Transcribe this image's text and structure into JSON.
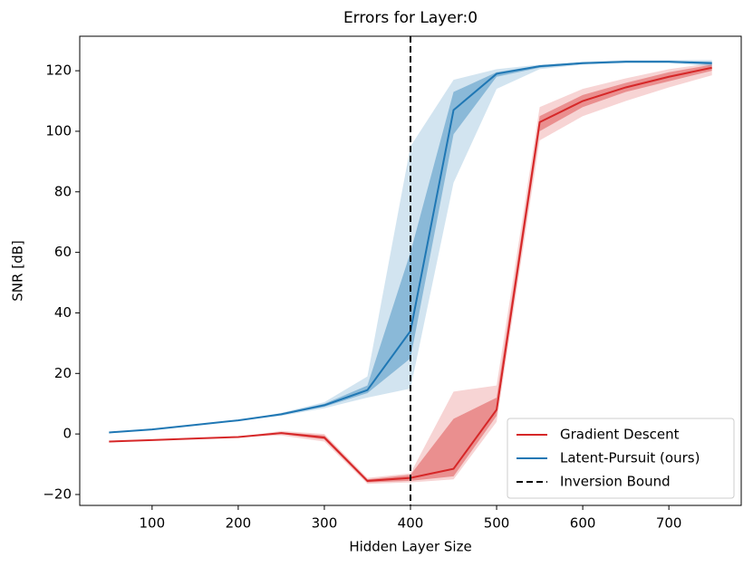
{
  "chart_data": {
    "type": "line",
    "title": "Errors for Layer:0",
    "xlabel": "Hidden Layer Size",
    "ylabel": "SNR [dB]",
    "x": [
      50,
      100,
      150,
      200,
      250,
      300,
      350,
      400,
      450,
      500,
      550,
      600,
      650,
      700,
      750
    ],
    "xlim": [
      16,
      784
    ],
    "xticks": [
      100,
      200,
      300,
      400,
      500,
      600,
      700
    ],
    "ylim": [
      -23.6,
      131.4
    ],
    "yticks": [
      {
        "value": -20,
        "label": "−20"
      },
      0,
      20,
      40,
      60,
      80,
      100,
      120
    ],
    "legend": "lower right",
    "series": [
      {
        "name": "Gradient Descent",
        "color": "#d62728",
        "values": [
          -2.5,
          -2,
          -1.5,
          -1,
          0.3,
          -1.2,
          -15.5,
          -14.5,
          -11.5,
          8,
          103,
          110,
          114.5,
          118,
          121
        ],
        "inner_lower": [
          -2.5,
          -2,
          -1.5,
          -1,
          0,
          -1.8,
          -16,
          -15.5,
          -14,
          6,
          100,
          108,
          113,
          116.5,
          120
        ],
        "inner_upper": [
          -2.5,
          -2,
          -1.5,
          -1,
          0.6,
          -0.5,
          -15,
          -13.5,
          5,
          12,
          105,
          112,
          116,
          119.5,
          122
        ],
        "outer_lower": [
          -2.5,
          -2,
          -1.5,
          -1,
          -0.5,
          -2.5,
          -16.5,
          -16,
          -15,
          4,
          97,
          105,
          110,
          114.5,
          118.5
        ],
        "outer_upper": [
          -2.5,
          -2,
          -1.5,
          -1,
          1,
          0,
          -14.5,
          -13,
          14,
          16,
          108,
          114,
          117.5,
          120.5,
          122.5
        ]
      },
      {
        "name": "Latent-Pursuit (ours)",
        "color": "#1f77b4",
        "values": [
          0.5,
          1.5,
          3,
          4.5,
          6.5,
          9.5,
          14.5,
          34,
          107,
          119,
          121.5,
          122.5,
          123,
          123,
          122.5
        ],
        "inner_lower": [
          0.5,
          1.5,
          3,
          4.5,
          6.3,
          9,
          13.5,
          25,
          99,
          118,
          121,
          122.2,
          122.8,
          122.8,
          122
        ],
        "inner_upper": [
          0.5,
          1.5,
          3,
          4.5,
          6.8,
          10,
          16,
          60,
          113,
          119.5,
          121.8,
          122.8,
          123.2,
          123.2,
          123
        ],
        "outer_lower": [
          0.5,
          1.5,
          3,
          4.5,
          6,
          8.5,
          12,
          15,
          83,
          114,
          120.5,
          122,
          122.5,
          122.5,
          121.5
        ],
        "outer_upper": [
          0.5,
          1.5,
          3,
          4.5,
          7,
          10.5,
          19,
          95,
          117,
          120.5,
          122,
          123,
          123.5,
          123.5,
          123.5
        ]
      }
    ],
    "vline": {
      "x": 400,
      "name": "Inversion Bound",
      "color": "#000000"
    }
  }
}
